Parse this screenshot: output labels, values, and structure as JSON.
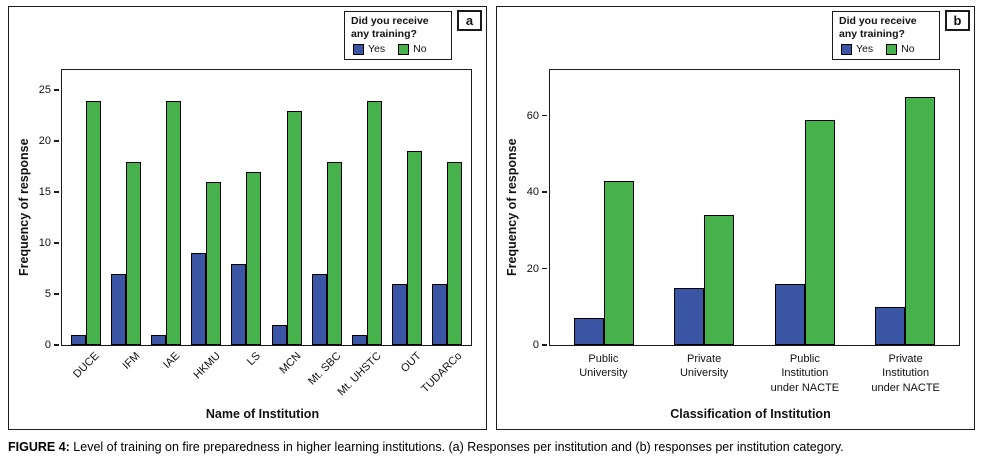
{
  "figure": {
    "caption_label": "FIGURE 4:",
    "caption_text": " Level of training on fire preparedness in higher learning institutions. (a) Responses per institution and (b) responses per institution category."
  },
  "legend": {
    "title": "Did you receive any training?",
    "items": [
      {
        "label": "Yes",
        "color": "#3b55a5"
      },
      {
        "label": "No",
        "color": "#47b14b"
      }
    ]
  },
  "chart_data": [
    {
      "type": "bar",
      "panel_label": "a",
      "title": "",
      "xlabel": "Name of Institution",
      "ylabel": "Frequency of response",
      "categories": [
        "DUCE",
        "IFM",
        "IAE",
        "HKMU",
        "LS",
        "MCN",
        "Mt. SBC",
        "Mt. UHSTC",
        "OUT",
        "TUDARCo"
      ],
      "series": [
        {
          "name": "Yes",
          "color": "#3b55a5",
          "values": [
            1,
            7,
            1,
            9,
            8,
            2,
            7,
            1,
            6,
            6
          ]
        },
        {
          "name": "No",
          "color": "#47b14b",
          "values": [
            24,
            18,
            24,
            16,
            17,
            23,
            18,
            24,
            19,
            18
          ]
        }
      ],
      "yticks": [
        0,
        5,
        10,
        15,
        20,
        25
      ],
      "ylim": [
        0,
        27
      ],
      "rotate_xticks": true,
      "grid": false,
      "legend_position": "top-right"
    },
    {
      "type": "bar",
      "panel_label": "b",
      "title": "",
      "xlabel": "Classification of Institution",
      "ylabel": "Frequency of response",
      "categories": [
        "Public University",
        "Private University",
        "Public Institution under NACTE",
        "Private Institution under NACTE"
      ],
      "xticklabels": [
        "Public\nUniversity",
        "Private\nUniversity",
        "Public\nInstitution\nunder NACTE",
        "Private\nInstitution\nunder NACTE"
      ],
      "series": [
        {
          "name": "Yes",
          "color": "#3b55a5",
          "values": [
            7,
            15,
            16,
            10
          ]
        },
        {
          "name": "No",
          "color": "#47b14b",
          "values": [
            43,
            34,
            59,
            65
          ]
        }
      ],
      "yticks": [
        0,
        20,
        40,
        60
      ],
      "ylim": [
        0,
        72
      ],
      "rotate_xticks": false,
      "grid": false,
      "legend_position": "top-right"
    }
  ]
}
